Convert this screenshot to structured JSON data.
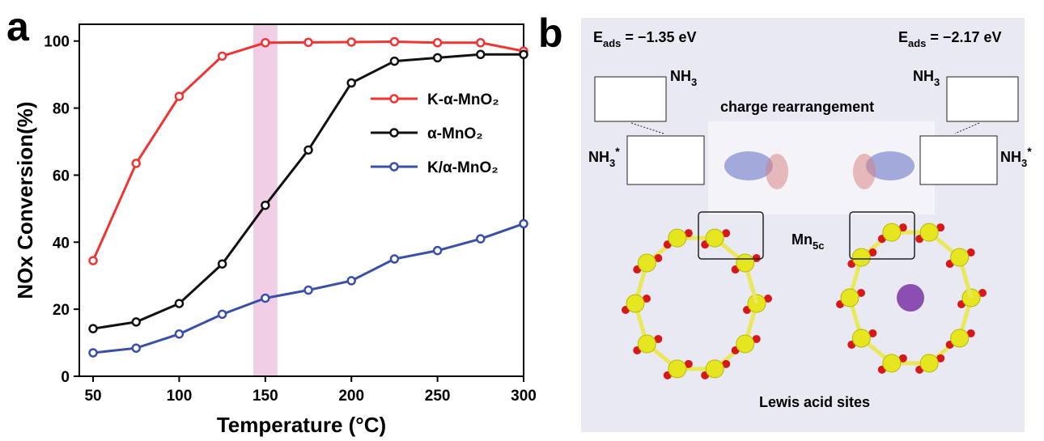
{
  "chart_data": {
    "type": "line",
    "panel_label": "a",
    "x_label": "Temperature (°C)",
    "y_label": "NOx Conversion(%)",
    "x": [
      50,
      75,
      100,
      125,
      150,
      175,
      200,
      225,
      250,
      275,
      300
    ],
    "series": [
      {
        "name": "K-α-MnO₂",
        "color": "#f03434",
        "values": [
          34.5,
          63.5,
          83.5,
          95.5,
          99.5,
          99.6,
          99.7,
          99.8,
          99.5,
          99.5,
          97
        ]
      },
      {
        "name": "α-MnO₂",
        "color": "#111111",
        "values": [
          14.2,
          16.2,
          21.7,
          33.5,
          51,
          67.5,
          87.5,
          94,
          95,
          96,
          96
        ]
      },
      {
        "name": "K/α-MnO₂",
        "color": "#3a4fa8",
        "values": [
          7,
          8.4,
          12.6,
          18.5,
          23.3,
          25.7,
          28.5,
          35,
          37.5,
          41,
          45.5
        ]
      }
    ],
    "highlight_x": [
      143,
      157
    ],
    "highlight_color": "#f0cfe6",
    "xlim": [
      42,
      300
    ],
    "ylim": [
      0,
      105
    ],
    "xticks": [
      50,
      100,
      150,
      200,
      250,
      300
    ],
    "yticks": [
      0,
      20,
      40,
      60,
      80,
      100
    ],
    "legend": "upper right",
    "grid": false
  },
  "diagram": {
    "panel_label": "b",
    "energy_left": {
      "symbol": "E",
      "subscript": "ads",
      "value": " = −1.35 eV"
    },
    "energy_right": {
      "symbol": "E",
      "subscript": "ads",
      "value": " = −2.17 eV"
    },
    "gas_left": {
      "symbol": "NH",
      "subscript": "3"
    },
    "gas_right": {
      "symbol": "NH",
      "subscript": "3"
    },
    "ads_left": {
      "symbol": "NH",
      "subscript": "3",
      "superscript": "*"
    },
    "ads_right": {
      "symbol": "NH",
      "subscript": "3",
      "superscript": "*"
    },
    "charge": "charge rearrangement",
    "site": {
      "symbol": "Mn",
      "subscript": "5c"
    },
    "acid": "Lewis acid sites"
  }
}
